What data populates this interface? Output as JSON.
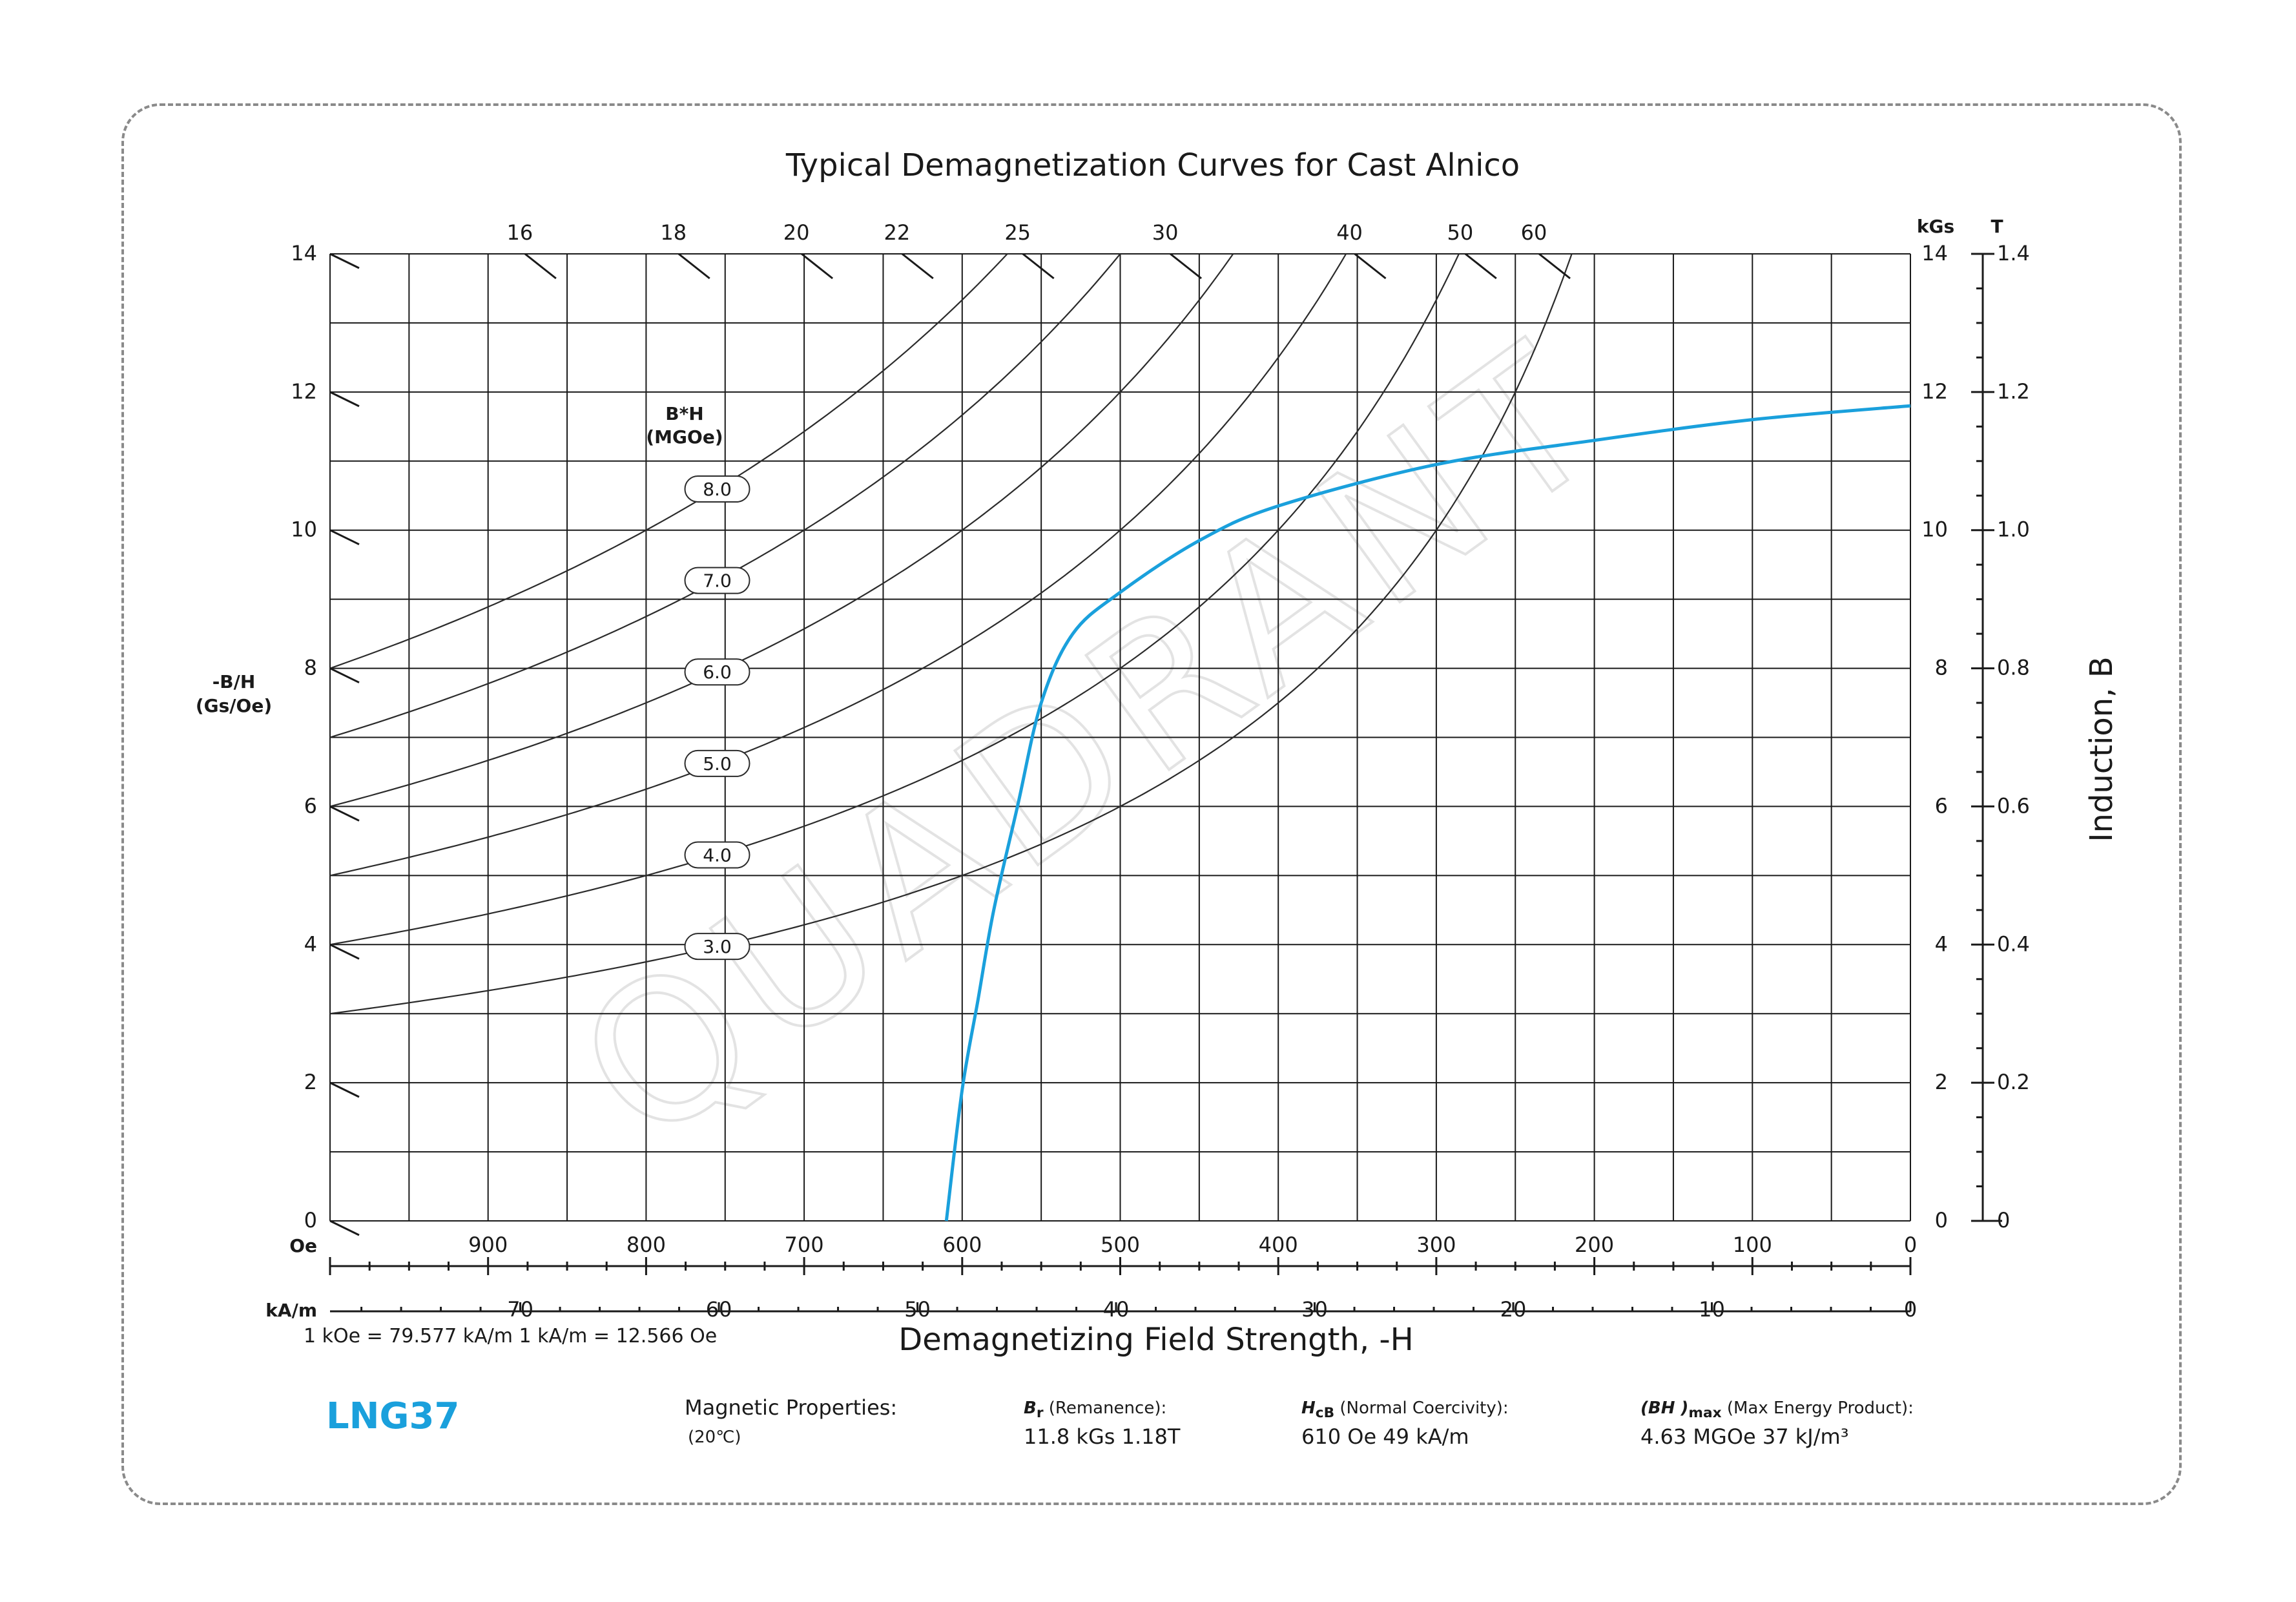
{
  "title": "Typical Demagnetization Curves for Cast Alnico",
  "grade": "LNG37",
  "conversion_note": "1 kOe = 79.577 kA/m   1 kA/m = 12.566 Oe",
  "properties": {
    "heading": "Magnetic Properties:",
    "temperature": "(20℃)",
    "br": {
      "symbol": "B",
      "sub": "r",
      "desc": " (Remanence):",
      "value": "11.8 kGs   1.18T"
    },
    "hcb": {
      "symbol": "H",
      "sub": "cB",
      "desc": " (Normal Coercivity):",
      "value": "610 Oe    49 kA/m"
    },
    "bhmax": {
      "symbol": "(BH )",
      "sub": "max",
      "desc": " (Max Energy Product):",
      "value": "4.63 MGOe    37 kJ/m³"
    }
  },
  "watermark": "QUADRANT",
  "chart_data": {
    "type": "line",
    "title": "Typical Demagnetization Curves for Cast Alnico",
    "xlabel": "Demagnetizing Field Strength, -H",
    "ylabel_right": "Induction, B",
    "ylabel_left": "-B/H (Gs/Oe)",
    "x_unit_oe": "Oe",
    "x_unit_kam": "kA/m",
    "y_unit_kgs": "kGs",
    "y_unit_t": "T",
    "xlim_oe": [
      1000,
      0
    ],
    "ylim_kgs": [
      0,
      14
    ],
    "x_ticks_oe": [
      900,
      800,
      700,
      600,
      500,
      400,
      300,
      200,
      100,
      0
    ],
    "x_ticks_kam": [
      70,
      60,
      50,
      40,
      30,
      20,
      10,
      0
    ],
    "y_ticks_kgs": [
      0,
      2,
      4,
      6,
      8,
      10,
      12,
      14
    ],
    "y_ticks_t": [
      "0",
      "0.2",
      "0.4",
      "0.6",
      "0.8",
      "1.0",
      "1.2",
      "1.4"
    ],
    "left_y_ticks": [
      0,
      2,
      4,
      6,
      8,
      10,
      12,
      14
    ],
    "bh_title": [
      "B*H",
      "(MGOe)"
    ],
    "bh_labels": [
      {
        "value": 3.0,
        "label": "3.0",
        "at_H": 755
      },
      {
        "value": 4.0,
        "label": "4.0",
        "at_H": 755
      },
      {
        "value": 5.0,
        "label": "5.0",
        "at_H": 755
      },
      {
        "value": 6.0,
        "label": "6.0",
        "at_H": 755
      },
      {
        "value": 7.0,
        "label": "7.0",
        "at_H": 755
      },
      {
        "value": 8.0,
        "label": "8.0",
        "at_H": 755
      }
    ],
    "slope_labels": [
      {
        "label": "16",
        "slope": 16
      },
      {
        "label": "18",
        "slope": 18
      },
      {
        "label": "20",
        "slope": 20
      },
      {
        "label": "22",
        "slope": 22
      },
      {
        "label": "25",
        "slope": 25
      },
      {
        "label": "30",
        "slope": 30
      },
      {
        "label": "40",
        "slope": 40
      },
      {
        "label": "50",
        "slope": 50
      },
      {
        "label": "60",
        "slope": 60
      }
    ],
    "series": [
      {
        "name": "LNG37",
        "color": "#1aa0dc",
        "points_oe_kgs": [
          [
            0,
            11.8
          ],
          [
            100,
            11.6
          ],
          [
            200,
            11.3
          ],
          [
            300,
            10.95
          ],
          [
            400,
            10.35
          ],
          [
            450,
            9.85
          ],
          [
            500,
            9.1
          ],
          [
            530,
            8.5
          ],
          [
            550,
            7.5
          ],
          [
            565,
            6.0
          ],
          [
            580,
            4.5
          ],
          [
            590,
            3.2
          ],
          [
            600,
            1.9
          ],
          [
            610,
            0
          ]
        ]
      }
    ]
  }
}
